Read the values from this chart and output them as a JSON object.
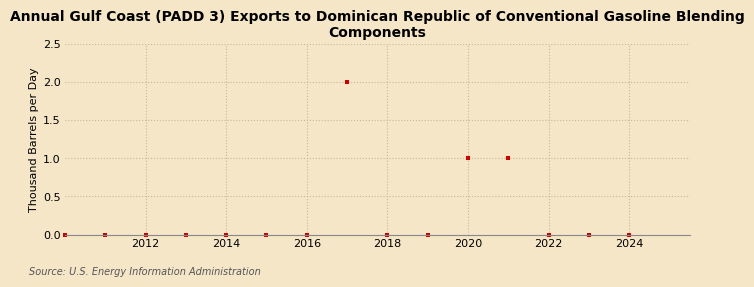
{
  "title": "Annual Gulf Coast (PADD 3) Exports to Dominican Republic of Conventional Gasoline Blending\nComponents",
  "ylabel": "Thousand Barrels per Day",
  "source": "Source: U.S. Energy Information Administration",
  "background_color": "#f5e6c8",
  "plot_background_color": "#f5e6c8",
  "marker_color": "#cc0000",
  "marker_style": "s",
  "marker_size": 3,
  "xlim": [
    2010.0,
    2025.5
  ],
  "ylim": [
    0.0,
    2.5
  ],
  "yticks": [
    0.0,
    0.5,
    1.0,
    1.5,
    2.0,
    2.5
  ],
  "xticks": [
    2012,
    2014,
    2016,
    2018,
    2020,
    2022,
    2024
  ],
  "grid_color": "#c8b89a",
  "grid_linestyle": ":",
  "years": [
    2010,
    2011,
    2012,
    2013,
    2014,
    2015,
    2016,
    2017,
    2018,
    2019,
    2020,
    2021,
    2022,
    2023,
    2024
  ],
  "values": [
    0.0,
    0.0,
    0.0,
    0.0,
    0.0,
    0.0,
    0.0,
    2.0,
    0.0,
    0.0,
    1.0,
    1.0,
    0.0,
    0.0,
    0.0
  ],
  "title_fontsize": 10,
  "tick_fontsize": 8,
  "ylabel_fontsize": 8,
  "source_fontsize": 7
}
